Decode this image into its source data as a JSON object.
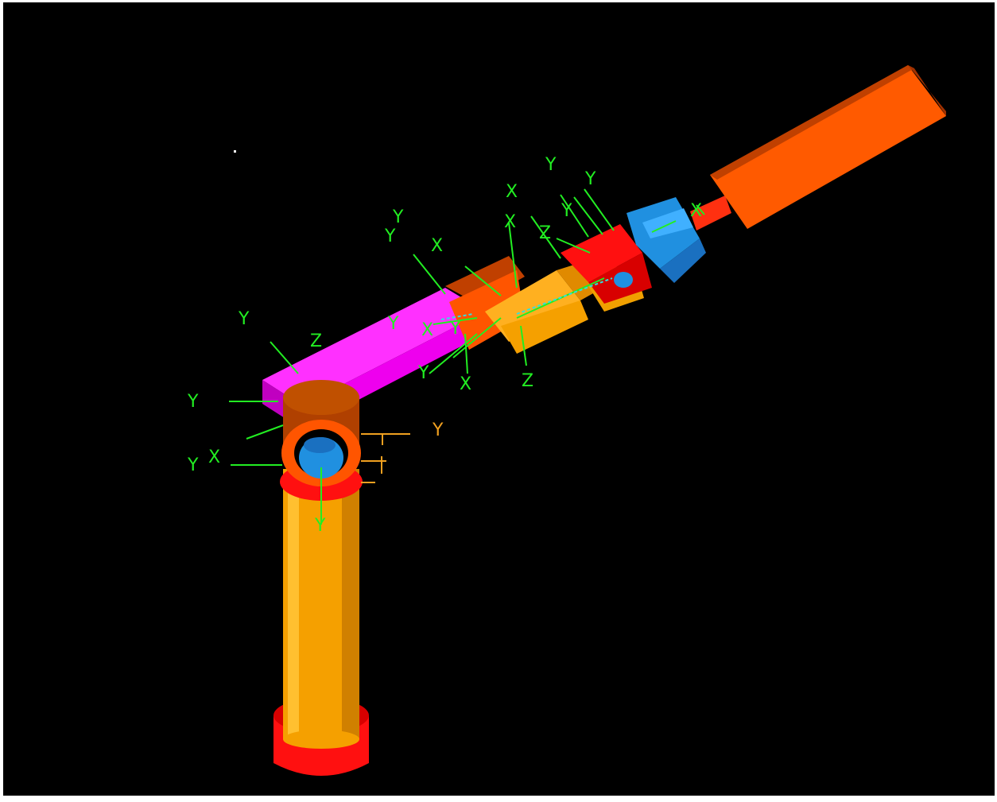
{
  "viewport": {
    "background": "#000000"
  },
  "colors": {
    "frame_axis": "#22ee22",
    "frame_axis_alt": "#f0a020",
    "link_magenta": "#ee00ee",
    "link_orange": "#ff5500",
    "link_amber": "#f5a000",
    "joint_red": "#ff1010",
    "joint_blue": "#2090e0",
    "link_brown": "#b04000"
  },
  "axis_labels": {
    "y1": "Y",
    "z1": "Z",
    "y2": "Y",
    "yx": "Y",
    "x1": "X",
    "y3": "Y",
    "y4": "Y",
    "y5": "Y",
    "x2": "X",
    "y6": "Y",
    "y7": "Y",
    "x3": "X",
    "y8": "Y",
    "x4": "X",
    "x5": "X",
    "z2": "Z",
    "y9": "Y",
    "x6": "X",
    "z3": "Z",
    "y10": "Y",
    "y11": "Y",
    "x7": "X",
    "orange_y": "Y"
  }
}
